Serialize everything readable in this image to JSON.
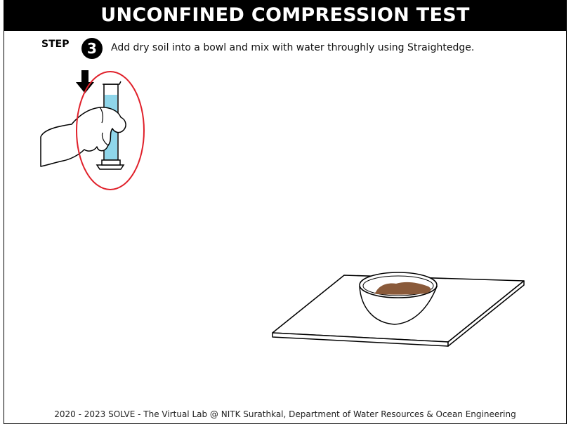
{
  "header": {
    "title": "UNCONFINED COMPRESSION TEST"
  },
  "step": {
    "label": "STEP",
    "number": "3",
    "instruction": "Add dry soil into a bowl and mix with water throughly using Straightedge."
  },
  "footer": {
    "text": "2020 - 2023 SOLVE - The Virtual Lab @ NITK Surathkal, Department of Water Resources & Ocean Engineering"
  },
  "colors": {
    "highlight_ring": "#e0202a",
    "water": "#8fd6ea",
    "soil": "#8a5a3a"
  },
  "icons": [
    "down-arrow-icon",
    "graduated-cylinder-icon",
    "hand-icon",
    "bowl-icon",
    "tray-icon"
  ]
}
